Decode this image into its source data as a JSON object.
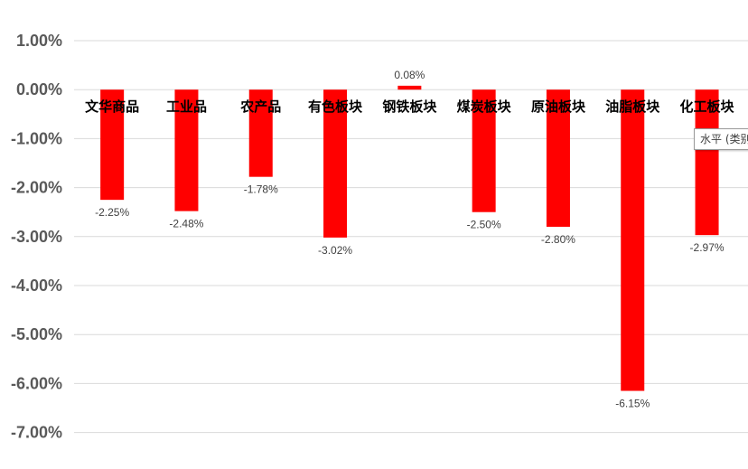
{
  "chart_data": {
    "type": "bar",
    "categories": [
      "文华商品",
      "工业品",
      "农产品",
      "有色板块",
      "钢铁板块",
      "煤炭板块",
      "原油板块",
      "油脂板块",
      "化工板块"
    ],
    "values": [
      -2.25,
      -2.48,
      -1.78,
      -3.02,
      0.08,
      -2.5,
      -2.8,
      -6.15,
      -2.97
    ],
    "data_labels": [
      "-2.25%",
      "-2.48%",
      "-1.78%",
      "-3.02%",
      "0.08%",
      "-2.50%",
      "-2.80%",
      "-6.15%",
      "-2.97%"
    ],
    "y_ticks": [
      1,
      0,
      -1,
      -2,
      -3,
      -4,
      -5,
      -6,
      -7
    ],
    "y_tick_labels": [
      "1.00%",
      "0.00%",
      "-1.00%",
      "-2.00%",
      "-3.00%",
      "-4.00%",
      "-5.00%",
      "-6.00%",
      "-7.00%"
    ],
    "ylim": [
      -7,
      1
    ],
    "grid": true,
    "bar_color": "#ff0000",
    "gridline_color": "#d9d9d9",
    "title": "",
    "xlabel": "",
    "ylabel": ""
  },
  "tooltip": {
    "text": "水平 (类别"
  }
}
